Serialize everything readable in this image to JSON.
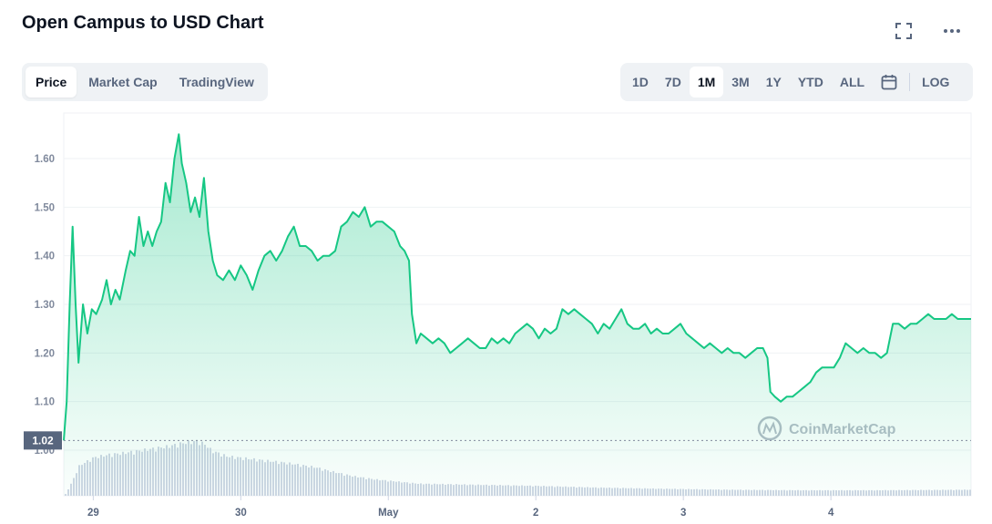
{
  "header": {
    "title": "Open Campus to USD Chart"
  },
  "tabs": [
    {
      "label": "Price",
      "active": true
    },
    {
      "label": "Market Cap",
      "active": false
    },
    {
      "label": "TradingView",
      "active": false
    }
  ],
  "ranges": [
    {
      "label": "1D",
      "active": false
    },
    {
      "label": "7D",
      "active": false
    },
    {
      "label": "1M",
      "active": true
    },
    {
      "label": "3M",
      "active": false
    },
    {
      "label": "1Y",
      "active": false
    },
    {
      "label": "YTD",
      "active": false
    },
    {
      "label": "ALL",
      "active": false
    }
  ],
  "log_label": "LOG",
  "watermark": "CoinMarketCap",
  "colors": {
    "line": "#16c784",
    "volume": "#cfd6e4",
    "label_bg": "#58667e"
  },
  "chart_data": {
    "type": "area",
    "title": "Open Campus to USD Chart",
    "xlabel": "",
    "ylabel": "",
    "ylim": [
      1.0,
      1.68
    ],
    "y_ticks": [
      "1.00",
      "1.10",
      "1.20",
      "1.30",
      "1.40",
      "1.50",
      "1.60"
    ],
    "x_ticks": [
      {
        "label": "29",
        "t": 0.2,
        "bold": false
      },
      {
        "label": "30",
        "t": 1.2,
        "bold": false
      },
      {
        "label": "May",
        "t": 2.2,
        "bold": true
      },
      {
        "label": "2",
        "t": 3.2,
        "bold": false
      },
      {
        "label": "3",
        "t": 4.2,
        "bold": false
      },
      {
        "label": "4",
        "t": 5.2,
        "bold": false
      }
    ],
    "x_range_days": [
      0,
      6.15
    ],
    "reference_price": 1.02,
    "reference_label": "1.02",
    "grid": true,
    "series": [
      {
        "points": [
          [
            0.0,
            1.02
          ],
          [
            0.02,
            1.1
          ],
          [
            0.04,
            1.3
          ],
          [
            0.06,
            1.46
          ],
          [
            0.08,
            1.3
          ],
          [
            0.1,
            1.18
          ],
          [
            0.13,
            1.3
          ],
          [
            0.16,
            1.24
          ],
          [
            0.19,
            1.29
          ],
          [
            0.22,
            1.28
          ],
          [
            0.26,
            1.31
          ],
          [
            0.29,
            1.35
          ],
          [
            0.32,
            1.3
          ],
          [
            0.35,
            1.33
          ],
          [
            0.38,
            1.31
          ],
          [
            0.42,
            1.37
          ],
          [
            0.45,
            1.41
          ],
          [
            0.48,
            1.4
          ],
          [
            0.51,
            1.48
          ],
          [
            0.54,
            1.42
          ],
          [
            0.57,
            1.45
          ],
          [
            0.6,
            1.42
          ],
          [
            0.63,
            1.45
          ],
          [
            0.66,
            1.47
          ],
          [
            0.69,
            1.55
          ],
          [
            0.72,
            1.51
          ],
          [
            0.75,
            1.6
          ],
          [
            0.78,
            1.65
          ],
          [
            0.8,
            1.59
          ],
          [
            0.83,
            1.55
          ],
          [
            0.86,
            1.49
          ],
          [
            0.89,
            1.52
          ],
          [
            0.92,
            1.48
          ],
          [
            0.95,
            1.56
          ],
          [
            0.98,
            1.45
          ],
          [
            1.01,
            1.39
          ],
          [
            1.04,
            1.36
          ],
          [
            1.08,
            1.35
          ],
          [
            1.12,
            1.37
          ],
          [
            1.16,
            1.35
          ],
          [
            1.2,
            1.38
          ],
          [
            1.24,
            1.36
          ],
          [
            1.28,
            1.33
          ],
          [
            1.32,
            1.37
          ],
          [
            1.36,
            1.4
          ],
          [
            1.4,
            1.41
          ],
          [
            1.44,
            1.39
          ],
          [
            1.48,
            1.41
          ],
          [
            1.52,
            1.44
          ],
          [
            1.56,
            1.46
          ],
          [
            1.6,
            1.42
          ],
          [
            1.64,
            1.42
          ],
          [
            1.68,
            1.41
          ],
          [
            1.72,
            1.39
          ],
          [
            1.76,
            1.4
          ],
          [
            1.8,
            1.4
          ],
          [
            1.84,
            1.41
          ],
          [
            1.88,
            1.46
          ],
          [
            1.92,
            1.47
          ],
          [
            1.96,
            1.49
          ],
          [
            2.0,
            1.48
          ],
          [
            2.04,
            1.5
          ],
          [
            2.08,
            1.46
          ],
          [
            2.12,
            1.47
          ],
          [
            2.16,
            1.47
          ],
          [
            2.2,
            1.46
          ],
          [
            2.24,
            1.45
          ],
          [
            2.28,
            1.42
          ],
          [
            2.31,
            1.41
          ],
          [
            2.34,
            1.39
          ],
          [
            2.36,
            1.28
          ],
          [
            2.39,
            1.22
          ],
          [
            2.42,
            1.24
          ],
          [
            2.46,
            1.23
          ],
          [
            2.5,
            1.22
          ],
          [
            2.54,
            1.23
          ],
          [
            2.58,
            1.22
          ],
          [
            2.62,
            1.2
          ],
          [
            2.66,
            1.21
          ],
          [
            2.7,
            1.22
          ],
          [
            2.74,
            1.23
          ],
          [
            2.78,
            1.22
          ],
          [
            2.82,
            1.21
          ],
          [
            2.86,
            1.21
          ],
          [
            2.9,
            1.23
          ],
          [
            2.94,
            1.22
          ],
          [
            2.98,
            1.23
          ],
          [
            3.02,
            1.22
          ],
          [
            3.06,
            1.24
          ],
          [
            3.1,
            1.25
          ],
          [
            3.14,
            1.26
          ],
          [
            3.18,
            1.25
          ],
          [
            3.22,
            1.23
          ],
          [
            3.26,
            1.25
          ],
          [
            3.3,
            1.24
          ],
          [
            3.34,
            1.25
          ],
          [
            3.38,
            1.29
          ],
          [
            3.42,
            1.28
          ],
          [
            3.46,
            1.29
          ],
          [
            3.5,
            1.28
          ],
          [
            3.54,
            1.27
          ],
          [
            3.58,
            1.26
          ],
          [
            3.62,
            1.24
          ],
          [
            3.66,
            1.26
          ],
          [
            3.7,
            1.25
          ],
          [
            3.74,
            1.27
          ],
          [
            3.78,
            1.29
          ],
          [
            3.82,
            1.26
          ],
          [
            3.86,
            1.25
          ],
          [
            3.9,
            1.25
          ],
          [
            3.94,
            1.26
          ],
          [
            3.98,
            1.24
          ],
          [
            4.02,
            1.25
          ],
          [
            4.06,
            1.24
          ],
          [
            4.1,
            1.24
          ],
          [
            4.14,
            1.25
          ],
          [
            4.18,
            1.26
          ],
          [
            4.22,
            1.24
          ],
          [
            4.26,
            1.23
          ],
          [
            4.3,
            1.22
          ],
          [
            4.34,
            1.21
          ],
          [
            4.38,
            1.22
          ],
          [
            4.42,
            1.21
          ],
          [
            4.46,
            1.2
          ],
          [
            4.5,
            1.21
          ],
          [
            4.54,
            1.2
          ],
          [
            4.58,
            1.2
          ],
          [
            4.62,
            1.19
          ],
          [
            4.66,
            1.2
          ],
          [
            4.7,
            1.21
          ],
          [
            4.74,
            1.21
          ],
          [
            4.77,
            1.19
          ],
          [
            4.79,
            1.12
          ],
          [
            4.82,
            1.11
          ],
          [
            4.86,
            1.1
          ],
          [
            4.9,
            1.11
          ],
          [
            4.94,
            1.11
          ],
          [
            4.98,
            1.12
          ],
          [
            5.02,
            1.13
          ],
          [
            5.06,
            1.14
          ],
          [
            5.1,
            1.16
          ],
          [
            5.14,
            1.17
          ],
          [
            5.18,
            1.17
          ],
          [
            5.22,
            1.17
          ],
          [
            5.26,
            1.19
          ],
          [
            5.3,
            1.22
          ],
          [
            5.34,
            1.21
          ],
          [
            5.38,
            1.2
          ],
          [
            5.42,
            1.21
          ],
          [
            5.46,
            1.2
          ],
          [
            5.5,
            1.2
          ],
          [
            5.54,
            1.19
          ],
          [
            5.58,
            1.2
          ],
          [
            5.62,
            1.26
          ],
          [
            5.66,
            1.26
          ],
          [
            5.7,
            1.25
          ],
          [
            5.74,
            1.26
          ],
          [
            5.78,
            1.26
          ],
          [
            5.82,
            1.27
          ],
          [
            5.86,
            1.28
          ],
          [
            5.9,
            1.27
          ],
          [
            5.94,
            1.27
          ],
          [
            5.98,
            1.27
          ],
          [
            6.02,
            1.28
          ],
          [
            6.06,
            1.27
          ],
          [
            6.1,
            1.27
          ],
          [
            6.15,
            1.27
          ]
        ]
      }
    ],
    "volume_profile": [
      [
        0.0,
        0.0
      ],
      [
        0.05,
        0.25
      ],
      [
        0.1,
        0.55
      ],
      [
        0.2,
        0.7
      ],
      [
        0.3,
        0.75
      ],
      [
        0.4,
        0.78
      ],
      [
        0.5,
        0.82
      ],
      [
        0.6,
        0.86
      ],
      [
        0.7,
        0.9
      ],
      [
        0.8,
        0.96
      ],
      [
        0.9,
        1.0
      ],
      [
        0.95,
        0.94
      ],
      [
        1.0,
        0.82
      ],
      [
        1.1,
        0.72
      ],
      [
        1.3,
        0.66
      ],
      [
        1.5,
        0.6
      ],
      [
        1.7,
        0.52
      ],
      [
        1.8,
        0.45
      ],
      [
        1.95,
        0.36
      ],
      [
        2.1,
        0.3
      ],
      [
        2.4,
        0.22
      ],
      [
        2.8,
        0.2
      ],
      [
        3.2,
        0.18
      ],
      [
        3.6,
        0.15
      ],
      [
        4.0,
        0.13
      ],
      [
        4.5,
        0.11
      ],
      [
        5.0,
        0.1
      ],
      [
        5.5,
        0.1
      ],
      [
        6.15,
        0.11
      ]
    ]
  }
}
